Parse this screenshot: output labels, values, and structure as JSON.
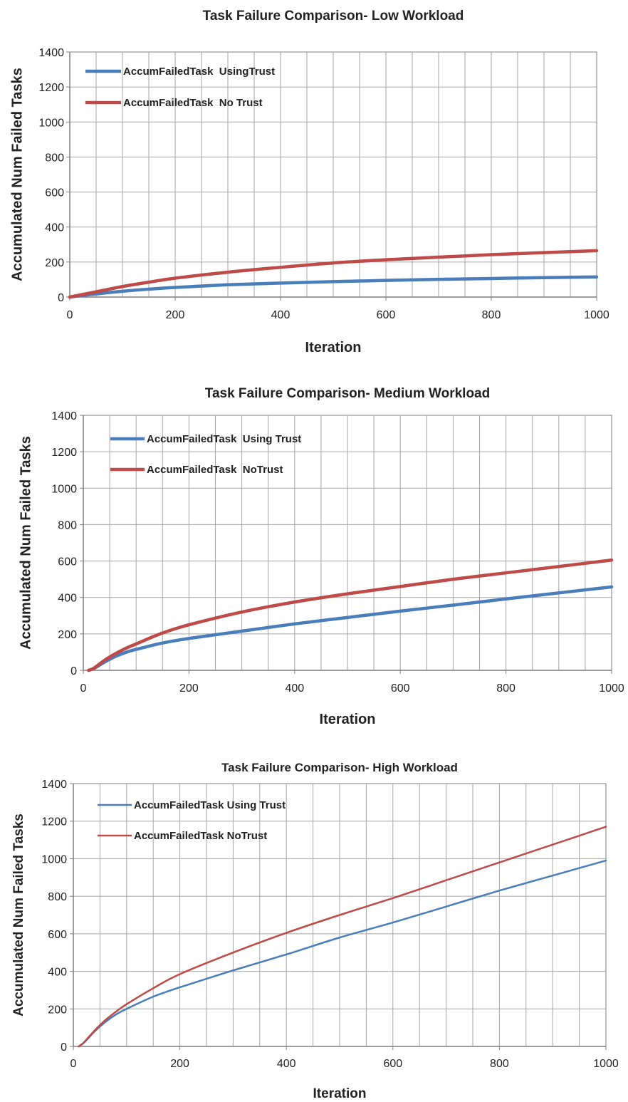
{
  "chart_data": [
    {
      "type": "line",
      "title": "Task Failure Comparison- Low Workload",
      "xlabel": "Iteration",
      "ylabel": "Accumulated Num Failed Tasks",
      "xlim": [
        0,
        1000
      ],
      "ylim": [
        0,
        1400
      ],
      "xticks": [
        0,
        200,
        400,
        600,
        800,
        1000
      ],
      "yticks": [
        0,
        200,
        400,
        600,
        800,
        1000,
        1200,
        1400
      ],
      "grid": true,
      "legend_position": "top-left",
      "series": [
        {
          "name": "AccumFailedTask  UsingTrust",
          "color": "#4a7ebb",
          "x": [
            0,
            50,
            100,
            150,
            200,
            300,
            400,
            500,
            600,
            700,
            800,
            900,
            1000
          ],
          "y": [
            0,
            18,
            33,
            45,
            55,
            70,
            80,
            88,
            95,
            101,
            106,
            111,
            115
          ]
        },
        {
          "name": "AccumFailedTask  No Trust",
          "color": "#be4b48",
          "x": [
            0,
            50,
            100,
            150,
            200,
            300,
            400,
            500,
            600,
            700,
            800,
            900,
            1000
          ],
          "y": [
            0,
            30,
            60,
            85,
            108,
            142,
            170,
            195,
            213,
            228,
            242,
            254,
            265
          ]
        }
      ]
    },
    {
      "type": "line",
      "title": "Task Failure Comparison- Medium Workload",
      "xlabel": "Iteration",
      "ylabel": "Accumulated Num Failed Tasks",
      "xlim": [
        0,
        1000
      ],
      "ylim": [
        0,
        1400
      ],
      "xticks": [
        0,
        200,
        400,
        600,
        800,
        1000
      ],
      "yticks": [
        0,
        200,
        400,
        600,
        800,
        1000,
        1200,
        1400
      ],
      "grid": true,
      "legend_position": "top-left",
      "series": [
        {
          "name": "AccumFailedTask  Using Trust",
          "color": "#4a7ebb",
          "x": [
            10,
            20,
            40,
            60,
            80,
            100,
            150,
            200,
            300,
            400,
            500,
            600,
            700,
            800,
            900,
            1000
          ],
          "y": [
            0,
            10,
            45,
            75,
            98,
            115,
            150,
            175,
            215,
            255,
            290,
            325,
            358,
            392,
            425,
            458
          ]
        },
        {
          "name": "AccumFailedTask  NoTrust",
          "color": "#be4b48",
          "x": [
            10,
            20,
            40,
            60,
            80,
            100,
            150,
            200,
            300,
            400,
            500,
            600,
            700,
            800,
            900,
            1000
          ],
          "y": [
            0,
            12,
            55,
            90,
            120,
            145,
            205,
            250,
            320,
            375,
            420,
            460,
            500,
            535,
            570,
            605
          ]
        }
      ]
    },
    {
      "type": "line",
      "title": "Task Failure Comparison- High Workload",
      "xlabel": "Iteration",
      "ylabel": "Accumulated Num Failed Tasks",
      "xlim": [
        0,
        1000
      ],
      "ylim": [
        0,
        1400
      ],
      "xticks": [
        0,
        200,
        400,
        600,
        800,
        1000
      ],
      "yticks": [
        0,
        200,
        400,
        600,
        800,
        1000,
        1200,
        1400
      ],
      "grid": true,
      "legend_position": "top-left",
      "series": [
        {
          "name": "AccumFailedTask Using Trust",
          "color": "#4a7ebb",
          "x": [
            10,
            20,
            40,
            60,
            80,
            100,
            150,
            200,
            300,
            400,
            500,
            600,
            700,
            800,
            900,
            1000
          ],
          "y": [
            0,
            20,
            80,
            130,
            170,
            200,
            265,
            315,
            405,
            490,
            580,
            660,
            745,
            830,
            910,
            990
          ]
        },
        {
          "name": "AccumFailedTask NoTrust",
          "color": "#be4b48",
          "x": [
            10,
            20,
            40,
            60,
            80,
            100,
            150,
            200,
            300,
            400,
            500,
            600,
            700,
            800,
            900,
            1000
          ],
          "y": [
            0,
            22,
            85,
            140,
            185,
            225,
            310,
            385,
            500,
            605,
            700,
            790,
            885,
            980,
            1075,
            1170
          ]
        }
      ]
    }
  ]
}
